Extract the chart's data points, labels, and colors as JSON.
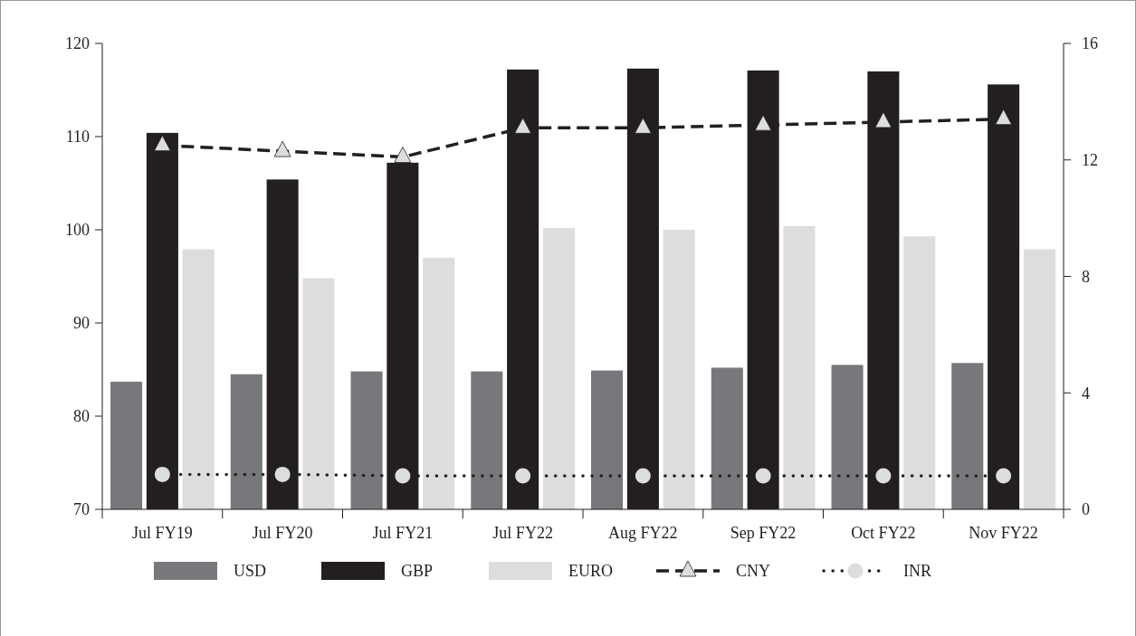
{
  "chart_data": {
    "type": "bar",
    "categories": [
      "Jul FY19",
      "Jul FY20",
      "Jul FY21",
      "Jul FY22",
      "Aug FY22",
      "Sep FY22",
      "Oct FY22",
      "Nov FY22"
    ],
    "series": [
      {
        "name": "USD",
        "color": "#77787b",
        "values": [
          83.7,
          84.5,
          84.8,
          84.8,
          84.9,
          85.2,
          85.5,
          85.7
        ]
      },
      {
        "name": "GBP",
        "color": "#231f20",
        "values": [
          110.4,
          105.4,
          107.2,
          117.2,
          117.3,
          117.1,
          117.0,
          115.6
        ]
      },
      {
        "name": "EURO",
        "color": "#dcdddf",
        "values": [
          97.9,
          94.8,
          97.0,
          100.2,
          100.0,
          100.4,
          99.3,
          97.9
        ]
      },
      {
        "name": "CNY",
        "type": "line",
        "axis": "y2",
        "color": "#231f20",
        "line_style": "dashed",
        "marker": "triangle",
        "values": [
          12.5,
          12.3,
          12.1,
          13.1,
          13.1,
          13.2,
          13.3,
          13.4
        ]
      },
      {
        "name": "INR",
        "type": "line",
        "axis": "y2",
        "color": "#231f20",
        "line_style": "dotted",
        "marker": "circle",
        "values": [
          1.2,
          1.2,
          1.15,
          1.15,
          1.15,
          1.15,
          1.15,
          1.15
        ]
      }
    ],
    "ylim": [
      70,
      120
    ],
    "yticks": [
      70,
      80,
      90,
      100,
      110,
      120
    ],
    "y2lim": [
      0,
      16
    ],
    "y2ticks": [
      0,
      4,
      8,
      12,
      16
    ],
    "legend": "bottom",
    "grid": false
  }
}
